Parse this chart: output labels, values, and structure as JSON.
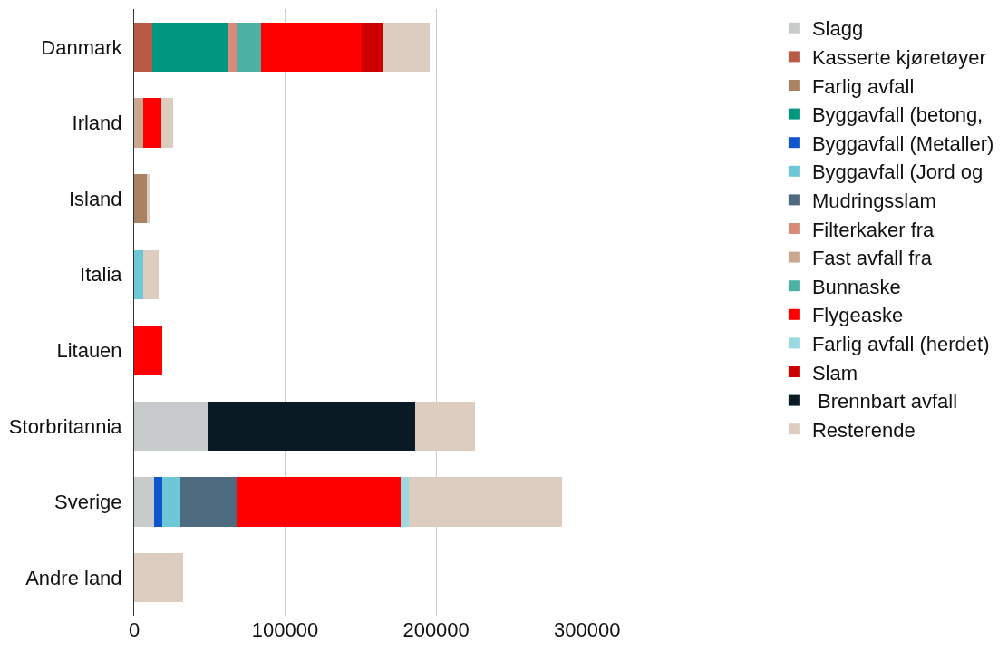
{
  "chart_data": {
    "type": "bar",
    "orientation": "horizontal",
    "stacked": true,
    "categories": [
      "Danmark",
      "Irland",
      "Island",
      "Italia",
      "Litauen",
      "Storbritannia",
      "Sverige",
      "Andre land"
    ],
    "series": [
      {
        "name": "Slagg",
        "color": "#c8cbcb",
        "values": [
          null,
          null,
          null,
          null,
          null,
          49300,
          13300,
          null
        ]
      },
      {
        "name": "Kasserte kjøretøyer",
        "color": "#b85a45",
        "values": [
          11800,
          null,
          null,
          null,
          null,
          null,
          null,
          null
        ]
      },
      {
        "name": "Farlig avfall",
        "color": "#a98163",
        "values": [
          null,
          null,
          8400,
          null,
          null,
          null,
          null,
          null
        ]
      },
      {
        "name": "Byggavfall (betong,",
        "color": "#009680",
        "values": [
          49800,
          null,
          null,
          null,
          null,
          null,
          null,
          null
        ]
      },
      {
        "name": "Byggavfall (Metaller)",
        "color": "#1155cc",
        "values": [
          null,
          null,
          null,
          null,
          null,
          null,
          5400,
          null
        ]
      },
      {
        "name": "Byggavfall (Jord og",
        "color": "#6ec7d6",
        "values": [
          null,
          null,
          null,
          5900,
          null,
          null,
          11800,
          null
        ]
      },
      {
        "name": "Mudringsslam",
        "color": "#4e6a7e",
        "values": [
          null,
          null,
          null,
          null,
          null,
          null,
          37900,
          null
        ]
      },
      {
        "name": "Filterkaker fra",
        "color": "#d88b7a",
        "values": [
          6400,
          null,
          null,
          null,
          null,
          null,
          null,
          null
        ]
      },
      {
        "name": "Fast avfall fra",
        "color": "#c8a990",
        "values": [
          null,
          5900,
          null,
          null,
          null,
          null,
          null,
          null
        ]
      },
      {
        "name": "Bunnaske",
        "color": "#4cb1a3",
        "values": [
          16300,
          null,
          null,
          null,
          null,
          null,
          null,
          null
        ]
      },
      {
        "name": "Flygeaske",
        "color": "#ff0000",
        "values": [
          66500,
          12300,
          null,
          null,
          18700,
          null,
          107900,
          null
        ]
      },
      {
        "name": "Farlig avfall (herdet)",
        "color": "#9cd8e0",
        "values": [
          null,
          null,
          null,
          null,
          null,
          null,
          5900,
          null
        ]
      },
      {
        "name": "Slam",
        "color": "#cc0000",
        "values": [
          13800,
          null,
          null,
          null,
          null,
          null,
          null,
          null
        ]
      },
      {
        "name": " Brennbart avfall",
        "color": "#0a1a24",
        "values": [
          null,
          null,
          null,
          null,
          null,
          137000,
          null,
          null
        ]
      },
      {
        "name": "Resterende",
        "color": "#ddcdc0",
        "values": [
          31000,
          7400,
          2000,
          10300,
          null,
          39400,
          101000,
          32500
        ]
      }
    ],
    "xlim": [
      0,
      300000
    ],
    "xticks": [
      0,
      100000,
      200000,
      300000
    ],
    "grid": "x",
    "legend": "right"
  }
}
